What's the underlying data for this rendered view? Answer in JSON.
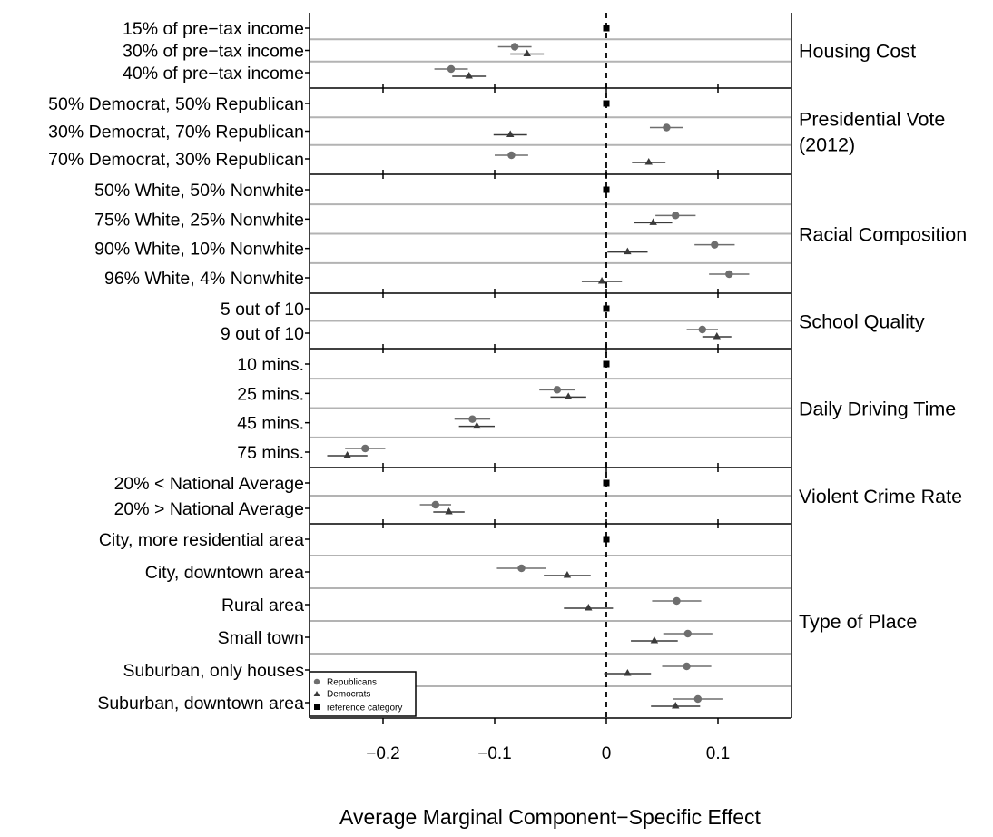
{
  "chart_data": {
    "type": "scatter",
    "xlabel": "Average Marginal Component−Specific Effect",
    "xlim": [
      -0.265,
      0.165
    ],
    "xticks": [
      -0.2,
      -0.1,
      0,
      0.1
    ],
    "xtick_labels": [
      "−0.2",
      "−0.1",
      "0",
      "0.1"
    ],
    "reference_line": 0,
    "legend": {
      "placement": "bottom-left",
      "entries": [
        {
          "name": "Republicans",
          "marker": "circle"
        },
        {
          "name": "Democrats",
          "marker": "triangle"
        },
        {
          "name": "reference category",
          "marker": "square"
        }
      ]
    },
    "panels": [
      {
        "label": "Housing Cost",
        "levels": [
          {
            "label": "15% of pre−tax income",
            "reference": true
          },
          {
            "label": "30% of pre−tax income",
            "rep": -0.082,
            "rep_ci": [
              -0.097,
              -0.067
            ],
            "dem": -0.071,
            "dem_ci": [
              -0.086,
              -0.056
            ]
          },
          {
            "label": "40% of pre−tax income",
            "rep": -0.139,
            "rep_ci": [
              -0.154,
              -0.124
            ],
            "dem": -0.123,
            "dem_ci": [
              -0.138,
              -0.108
            ]
          }
        ]
      },
      {
        "label": "Presidential Vote\n(2012)",
        "levels": [
          {
            "label": "50% Democrat, 50% Republican",
            "reference": true
          },
          {
            "label": "30% Democrat, 70% Republican",
            "rep": 0.054,
            "rep_ci": [
              0.039,
              0.069
            ],
            "dem": -0.086,
            "dem_ci": [
              -0.101,
              -0.071
            ]
          },
          {
            "label": "70% Democrat, 30% Republican",
            "rep": -0.085,
            "rep_ci": [
              -0.1,
              -0.07
            ],
            "dem": 0.038,
            "dem_ci": [
              0.023,
              0.053
            ]
          }
        ]
      },
      {
        "label": "Racial Composition",
        "levels": [
          {
            "label": "50% White, 50% Nonwhite",
            "reference": true
          },
          {
            "label": "75% White, 25% Nonwhite",
            "rep": 0.062,
            "rep_ci": [
              0.044,
              0.08
            ],
            "dem": 0.042,
            "dem_ci": [
              0.025,
              0.059
            ]
          },
          {
            "label": "90% White, 10% Nonwhite",
            "rep": 0.097,
            "rep_ci": [
              0.079,
              0.115
            ],
            "dem": 0.019,
            "dem_ci": [
              0.001,
              0.037
            ]
          },
          {
            "label": "96% White, 4% Nonwhite",
            "rep": 0.11,
            "rep_ci": [
              0.092,
              0.128
            ],
            "dem": -0.004,
            "dem_ci": [
              -0.022,
              0.014
            ]
          }
        ]
      },
      {
        "label": "School Quality",
        "levels": [
          {
            "label": "5 out of 10",
            "reference": true
          },
          {
            "label": "9 out of 10",
            "rep": 0.086,
            "rep_ci": [
              0.072,
              0.1
            ],
            "dem": 0.099,
            "dem_ci": [
              0.086,
              0.112
            ]
          }
        ]
      },
      {
        "label": "Daily Driving Time",
        "levels": [
          {
            "label": "10 mins.",
            "reference": true
          },
          {
            "label": "25 mins.",
            "rep": -0.044,
            "rep_ci": [
              -0.06,
              -0.028
            ],
            "dem": -0.034,
            "dem_ci": [
              -0.05,
              -0.018
            ]
          },
          {
            "label": "45 mins.",
            "rep": -0.12,
            "rep_ci": [
              -0.136,
              -0.104
            ],
            "dem": -0.116,
            "dem_ci": [
              -0.132,
              -0.1
            ]
          },
          {
            "label": "75 mins.",
            "rep": -0.216,
            "rep_ci": [
              -0.234,
              -0.198
            ],
            "dem": -0.232,
            "dem_ci": [
              -0.25,
              -0.214
            ]
          }
        ]
      },
      {
        "label": "Violent Crime Rate",
        "levels": [
          {
            "label": "20% < National Average",
            "reference": true
          },
          {
            "label": "20% > National Average",
            "rep": -0.153,
            "rep_ci": [
              -0.167,
              -0.139
            ],
            "dem": -0.141,
            "dem_ci": [
              -0.155,
              -0.127
            ]
          }
        ]
      },
      {
        "label": "Type of Place",
        "levels": [
          {
            "label": "City, more residential area",
            "reference": true
          },
          {
            "label": "City, downtown area",
            "rep": -0.076,
            "rep_ci": [
              -0.098,
              -0.054
            ],
            "dem": -0.035,
            "dem_ci": [
              -0.056,
              -0.014
            ]
          },
          {
            "label": "Rural area",
            "rep": 0.063,
            "rep_ci": [
              0.041,
              0.085
            ],
            "dem": -0.016,
            "dem_ci": [
              -0.038,
              0.006
            ]
          },
          {
            "label": "Small town",
            "rep": 0.073,
            "rep_ci": [
              0.051,
              0.095
            ],
            "dem": 0.043,
            "dem_ci": [
              0.022,
              0.064
            ]
          },
          {
            "label": "Suburban, only houses",
            "rep": 0.072,
            "rep_ci": [
              0.05,
              0.094
            ],
            "dem": 0.019,
            "dem_ci": [
              -0.002,
              0.04
            ]
          },
          {
            "label": "Suburban, downtown area",
            "rep": 0.082,
            "rep_ci": [
              0.06,
              0.104
            ],
            "dem": 0.062,
            "dem_ci": [
              0.04,
              0.084
            ]
          }
        ]
      }
    ]
  }
}
